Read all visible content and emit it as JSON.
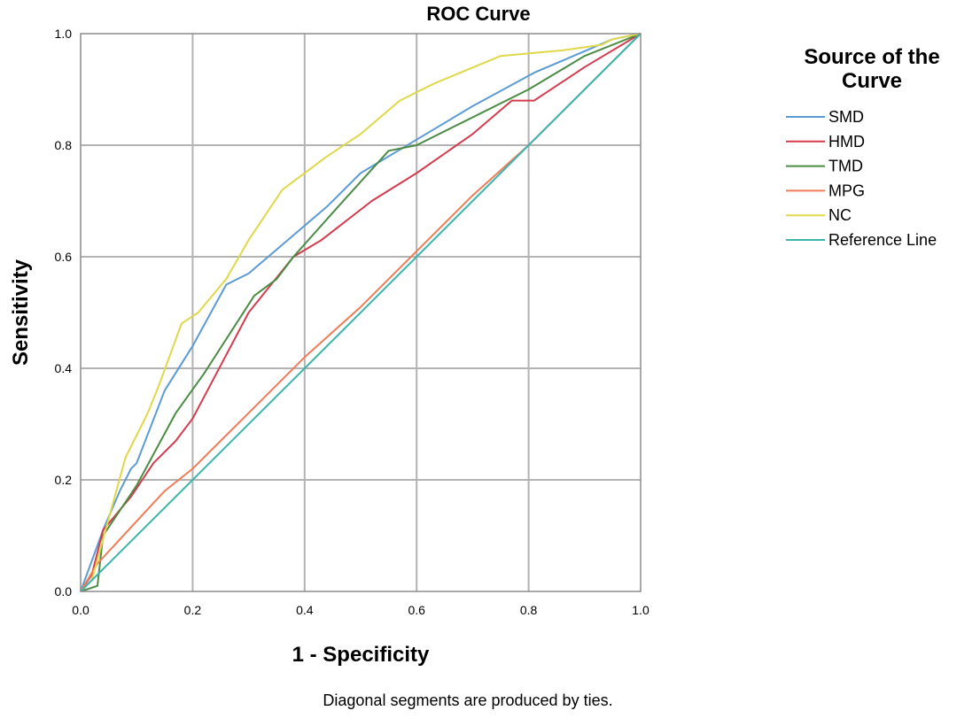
{
  "chart_data": {
    "type": "line",
    "title": "ROC Curve",
    "xlabel": "1 - Specificity",
    "ylabel": "Sensitivity",
    "xlim": [
      0,
      1
    ],
    "ylim": [
      0,
      1
    ],
    "x_ticks": [
      "0.0",
      "0.2",
      "0.4",
      "0.6",
      "0.8",
      "1.0"
    ],
    "y_ticks": [
      "0.0",
      "0.2",
      "0.4",
      "0.6",
      "0.8",
      "1.0"
    ],
    "grid": true,
    "legend": {
      "title_line1": "Source of the",
      "title_line2": "Curve",
      "placement": "right"
    },
    "footnote": "Diagonal segments are produced by ties.",
    "series": [
      {
        "name": "SMD",
        "color": "#5b9bd5",
        "x": [
          0,
          0.04,
          0.07,
          0.09,
          0.1,
          0.15,
          0.2,
          0.26,
          0.3,
          0.37,
          0.44,
          0.5,
          0.6,
          0.7,
          0.81,
          0.88,
          0.95,
          1
        ],
        "y": [
          0,
          0.11,
          0.18,
          0.22,
          0.23,
          0.36,
          0.44,
          0.55,
          0.57,
          0.63,
          0.69,
          0.75,
          0.81,
          0.87,
          0.93,
          0.96,
          0.99,
          1
        ]
      },
      {
        "name": "HMD",
        "color": "#d43c4e",
        "x": [
          0,
          0.02,
          0.04,
          0.09,
          0.13,
          0.17,
          0.2,
          0.3,
          0.38,
          0.43,
          0.52,
          0.6,
          0.7,
          0.77,
          0.81,
          0.9,
          1
        ],
        "y": [
          0,
          0.03,
          0.11,
          0.17,
          0.23,
          0.27,
          0.31,
          0.5,
          0.6,
          0.63,
          0.7,
          0.75,
          0.82,
          0.88,
          0.88,
          0.94,
          1
        ]
      },
      {
        "name": "TMD",
        "color": "#4a8c43",
        "x": [
          0,
          0.03,
          0.04,
          0.1,
          0.17,
          0.22,
          0.31,
          0.35,
          0.38,
          0.46,
          0.55,
          0.6,
          0.7,
          0.8,
          0.9,
          1
        ],
        "y": [
          0,
          0.01,
          0.1,
          0.19,
          0.32,
          0.39,
          0.53,
          0.56,
          0.6,
          0.69,
          0.79,
          0.8,
          0.85,
          0.9,
          0.96,
          1
        ]
      },
      {
        "name": "MPG",
        "color": "#f07c58",
        "x": [
          0,
          0.03,
          0.15,
          0.2,
          0.3,
          0.4,
          0.5,
          0.6,
          0.7,
          0.8,
          0.9,
          1
        ],
        "y": [
          0,
          0.05,
          0.18,
          0.22,
          0.32,
          0.42,
          0.51,
          0.61,
          0.71,
          0.8,
          0.9,
          1
        ]
      },
      {
        "name": "NC",
        "color": "#e0d84a",
        "x": [
          0,
          0.02,
          0.05,
          0.08,
          0.12,
          0.14,
          0.18,
          0.21,
          0.26,
          0.3,
          0.36,
          0.44,
          0.5,
          0.57,
          0.63,
          0.75,
          0.86,
          0.93,
          0.95,
          1
        ],
        "y": [
          0,
          0.02,
          0.13,
          0.24,
          0.32,
          0.37,
          0.48,
          0.5,
          0.56,
          0.63,
          0.72,
          0.78,
          0.82,
          0.88,
          0.91,
          0.96,
          0.97,
          0.98,
          0.99,
          1
        ]
      },
      {
        "name": "Reference Line",
        "color": "#3ab5ad",
        "x": [
          0,
          1
        ],
        "y": [
          0,
          1
        ]
      }
    ]
  }
}
